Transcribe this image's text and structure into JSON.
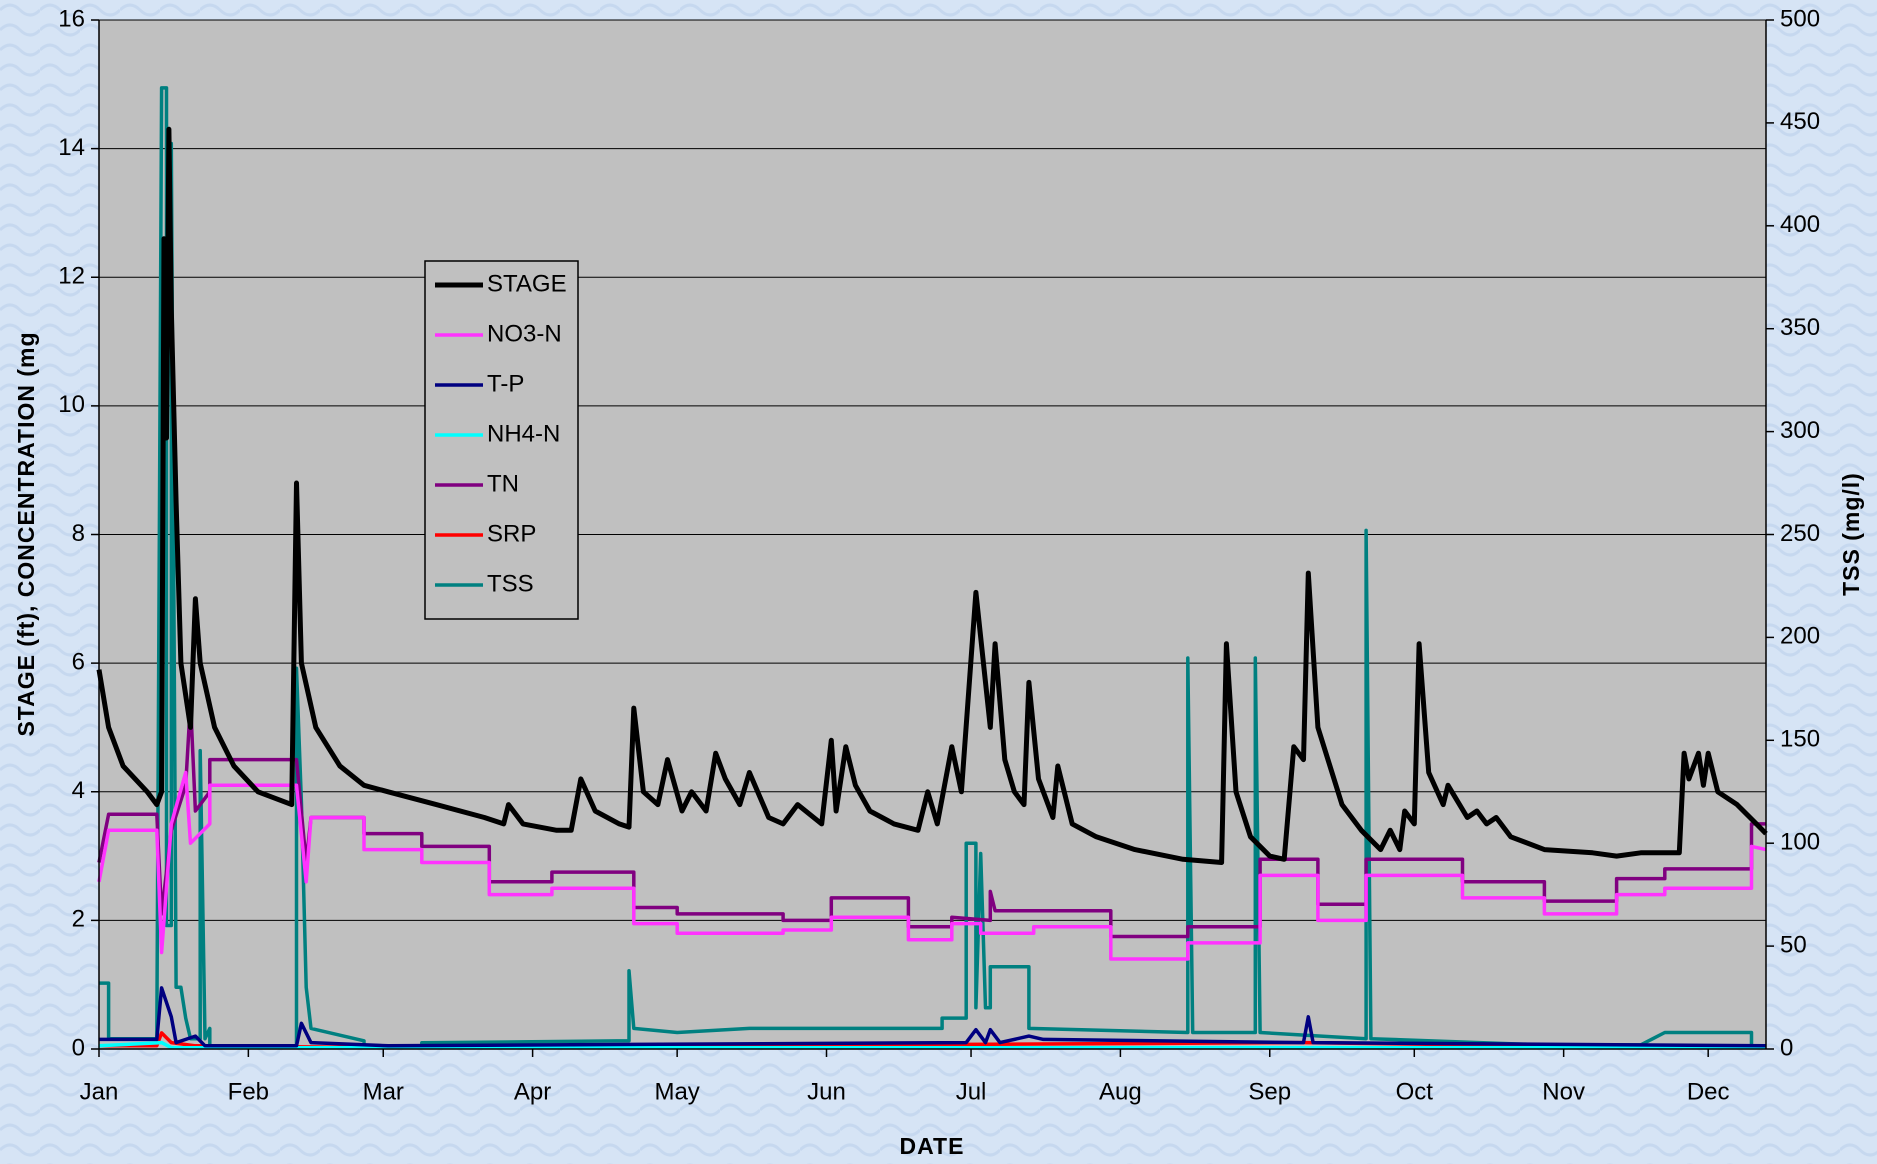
{
  "chart_data": {
    "type": "line",
    "x_label": "DATE",
    "y_label": "STAGE (ft), CONCENTRATION (mg",
    "y2_label": "TSS (mg/l)",
    "xlim": [
      0,
      346
    ],
    "xticks": [
      {
        "value": 0,
        "label": "Jan"
      },
      {
        "value": 31,
        "label": "Feb"
      },
      {
        "value": 59,
        "label": "Mar"
      },
      {
        "value": 90,
        "label": "Apr"
      },
      {
        "value": 120,
        "label": "May"
      },
      {
        "value": 151,
        "label": "Jun"
      },
      {
        "value": 181,
        "label": "Jul"
      },
      {
        "value": 212,
        "label": "Aug"
      },
      {
        "value": 243,
        "label": "Sep"
      },
      {
        "value": 273,
        "label": "Oct"
      },
      {
        "value": 304,
        "label": "Nov"
      },
      {
        "value": 334,
        "label": "Dec"
      }
    ],
    "ylim": [
      0,
      16
    ],
    "yticks": [
      0,
      2,
      4,
      6,
      8,
      10,
      12,
      14,
      16
    ],
    "y2lim": [
      0,
      500
    ],
    "y2ticks": [
      0,
      50,
      100,
      150,
      200,
      250,
      300,
      350,
      400,
      450,
      500
    ],
    "grid": true,
    "legend": "upper left",
    "series": [
      {
        "name": "STAGE",
        "color": "#000000",
        "x": [
          0,
          2,
          5,
          10,
          12,
          13,
          13.5,
          14,
          14.5,
          15,
          16,
          17,
          19,
          20,
          21,
          24,
          28,
          33,
          40,
          41,
          42,
          45,
          50,
          55,
          60,
          70,
          80,
          84,
          85,
          88,
          95,
          98,
          100,
          103,
          108,
          110,
          111,
          113,
          116,
          118,
          121,
          123,
          126,
          128,
          130,
          133,
          135,
          139,
          142,
          145,
          150,
          152,
          153,
          155,
          157,
          160,
          165,
          170,
          172,
          174,
          177,
          179,
          182,
          183,
          185,
          186,
          188,
          190,
          192,
          193,
          195,
          198,
          199,
          202,
          207,
          215,
          225,
          233,
          234,
          236,
          239,
          243,
          246,
          248,
          250,
          251,
          253,
          258,
          262,
          266,
          268,
          270,
          271,
          273,
          274,
          276,
          279,
          280,
          284,
          286,
          288,
          290,
          293,
          300,
          310,
          315,
          320,
          328,
          329,
          330,
          332,
          333,
          334,
          336,
          340,
          344,
          346
        ],
        "values": [
          5.9,
          5.0,
          4.4,
          4.0,
          3.8,
          4.0,
          12.6,
          9.5,
          14.3,
          11.5,
          8.5,
          6.0,
          5.0,
          7.0,
          6.0,
          5.0,
          4.4,
          4.0,
          3.8,
          8.8,
          6.0,
          5.0,
          4.4,
          4.1,
          4.0,
          3.8,
          3.6,
          3.5,
          3.8,
          3.5,
          3.4,
          3.4,
          4.2,
          3.7,
          3.5,
          3.45,
          5.3,
          4.0,
          3.8,
          4.5,
          3.7,
          4.0,
          3.7,
          4.6,
          4.2,
          3.8,
          4.3,
          3.6,
          3.5,
          3.8,
          3.5,
          4.8,
          3.7,
          4.7,
          4.1,
          3.7,
          3.5,
          3.4,
          4.0,
          3.5,
          4.7,
          4.0,
          7.1,
          6.4,
          5.0,
          6.3,
          4.5,
          4.0,
          3.8,
          5.7,
          4.2,
          3.6,
          4.4,
          3.5,
          3.3,
          3.1,
          2.95,
          2.9,
          6.3,
          4.0,
          3.3,
          3.0,
          2.95,
          4.7,
          4.5,
          7.4,
          5.0,
          3.8,
          3.4,
          3.1,
          3.4,
          3.1,
          3.7,
          3.5,
          6.3,
          4.3,
          3.8,
          4.1,
          3.6,
          3.7,
          3.5,
          3.6,
          3.3,
          3.1,
          3.05,
          3.0,
          3.05,
          3.05,
          4.6,
          4.2,
          4.6,
          4.1,
          4.6,
          4.0,
          3.8,
          3.5,
          3.35
        ]
      },
      {
        "name": "NO3-N",
        "color": "#ff33ff",
        "x": [
          0,
          2,
          12,
          13,
          15,
          18,
          19,
          23,
          23,
          41,
          43,
          44,
          55,
          55,
          67,
          67,
          81,
          81,
          94,
          94,
          111,
          111,
          120,
          120,
          142,
          142,
          152,
          152,
          168,
          168,
          177,
          177,
          183,
          183,
          194,
          194,
          210,
          210,
          226,
          226,
          241,
          241,
          253,
          253,
          263,
          263,
          283,
          283,
          300,
          300,
          315,
          315,
          325,
          325,
          343,
          343,
          346
        ],
        "values": [
          2.6,
          3.4,
          3.4,
          1.5,
          3.5,
          4.3,
          3.2,
          3.5,
          4.1,
          4.1,
          2.6,
          3.6,
          3.6,
          3.1,
          3.1,
          2.9,
          2.9,
          2.4,
          2.4,
          2.5,
          2.5,
          1.95,
          1.95,
          1.8,
          1.8,
          1.85,
          1.85,
          2.05,
          2.05,
          1.7,
          1.7,
          1.95,
          1.95,
          1.8,
          1.8,
          1.9,
          1.9,
          1.4,
          1.4,
          1.65,
          1.65,
          2.7,
          2.7,
          2.0,
          2.0,
          2.7,
          2.7,
          2.35,
          2.35,
          2.1,
          2.1,
          2.4,
          2.4,
          2.5,
          2.5,
          3.15,
          3.1
        ]
      },
      {
        "name": "T-P",
        "color": "#000080",
        "x": [
          0,
          12,
          13,
          15,
          16,
          20,
          22,
          41,
          42,
          44,
          60,
          180,
          182,
          184,
          185,
          187,
          193,
          196,
          250,
          251,
          252,
          346
        ],
        "values": [
          0.15,
          0.15,
          0.95,
          0.5,
          0.1,
          0.2,
          0.05,
          0.05,
          0.4,
          0.1,
          0.05,
          0.1,
          0.3,
          0.1,
          0.3,
          0.1,
          0.2,
          0.15,
          0.1,
          0.5,
          0.1,
          0.05
        ]
      },
      {
        "name": "NH4-N",
        "color": "#00ffff",
        "x": [
          0,
          13,
          15,
          60,
          346
        ],
        "values": [
          0.05,
          0.1,
          0.02,
          0.02,
          0.02
        ]
      },
      {
        "name": "TN",
        "color": "#800080",
        "x": [
          0,
          2,
          12,
          13,
          15,
          18,
          19,
          20,
          23,
          23,
          41,
          43,
          44,
          55,
          55,
          67,
          67,
          81,
          81,
          94,
          94,
          111,
          111,
          120,
          120,
          142,
          142,
          152,
          152,
          168,
          168,
          177,
          177,
          185,
          185,
          186,
          210,
          210,
          226,
          226,
          241,
          241,
          253,
          253,
          263,
          263,
          283,
          283,
          300,
          300,
          315,
          315,
          325,
          325,
          343,
          343,
          346
        ],
        "values": [
          2.9,
          3.65,
          3.65,
          2.1,
          3.4,
          4.1,
          5.4,
          3.7,
          4.0,
          4.5,
          4.5,
          2.9,
          3.6,
          3.6,
          3.35,
          3.35,
          3.15,
          3.15,
          2.6,
          2.6,
          2.75,
          2.75,
          2.2,
          2.2,
          2.1,
          2.1,
          2.0,
          2.0,
          2.35,
          2.35,
          1.9,
          1.9,
          2.05,
          2.0,
          2.45,
          2.15,
          2.15,
          1.75,
          1.75,
          1.9,
          1.9,
          2.95,
          2.95,
          2.25,
          2.25,
          2.95,
          2.95,
          2.6,
          2.6,
          2.3,
          2.3,
          2.65,
          2.65,
          2.8,
          2.8,
          3.5,
          3.5
        ]
      },
      {
        "name": "SRP",
        "color": "#ff0000",
        "x": [
          0,
          12,
          13,
          15,
          20,
          60,
          120,
          200,
          250,
          300,
          346
        ],
        "values": [
          0.05,
          0.05,
          0.25,
          0.1,
          0.05,
          0.02,
          0.05,
          0.08,
          0.1,
          0.05,
          0.05
        ]
      },
      {
        "name": "TSS",
        "color": "#008080",
        "axis": "y2",
        "x": [
          0,
          2,
          2,
          12,
          13,
          14,
          14,
          15,
          15,
          16,
          17,
          18,
          19,
          21,
          21,
          22,
          23,
          23,
          41,
          41,
          42,
          43,
          44,
          55,
          55,
          67,
          67,
          110,
          110,
          111,
          120,
          135,
          175,
          175,
          180,
          180,
          182,
          182,
          183,
          184,
          185,
          185,
          193,
          193,
          226,
          226,
          227,
          240,
          240,
          241,
          263,
          263,
          264,
          300,
          320,
          325,
          343,
          343
        ],
        "values": [
          32,
          32,
          5,
          5,
          467,
          467,
          60,
          60,
          440,
          30,
          30,
          15,
          5,
          5,
          145,
          5,
          10,
          1,
          1,
          185,
          120,
          30,
          10,
          4,
          1,
          1,
          3,
          4,
          38,
          10,
          8,
          10,
          10,
          15,
          15,
          100,
          100,
          20,
          95,
          20,
          20,
          40,
          40,
          10,
          8,
          190,
          8,
          8,
          190,
          8,
          5,
          252,
          5,
          2,
          2,
          8,
          8,
          0
        ]
      }
    ]
  }
}
